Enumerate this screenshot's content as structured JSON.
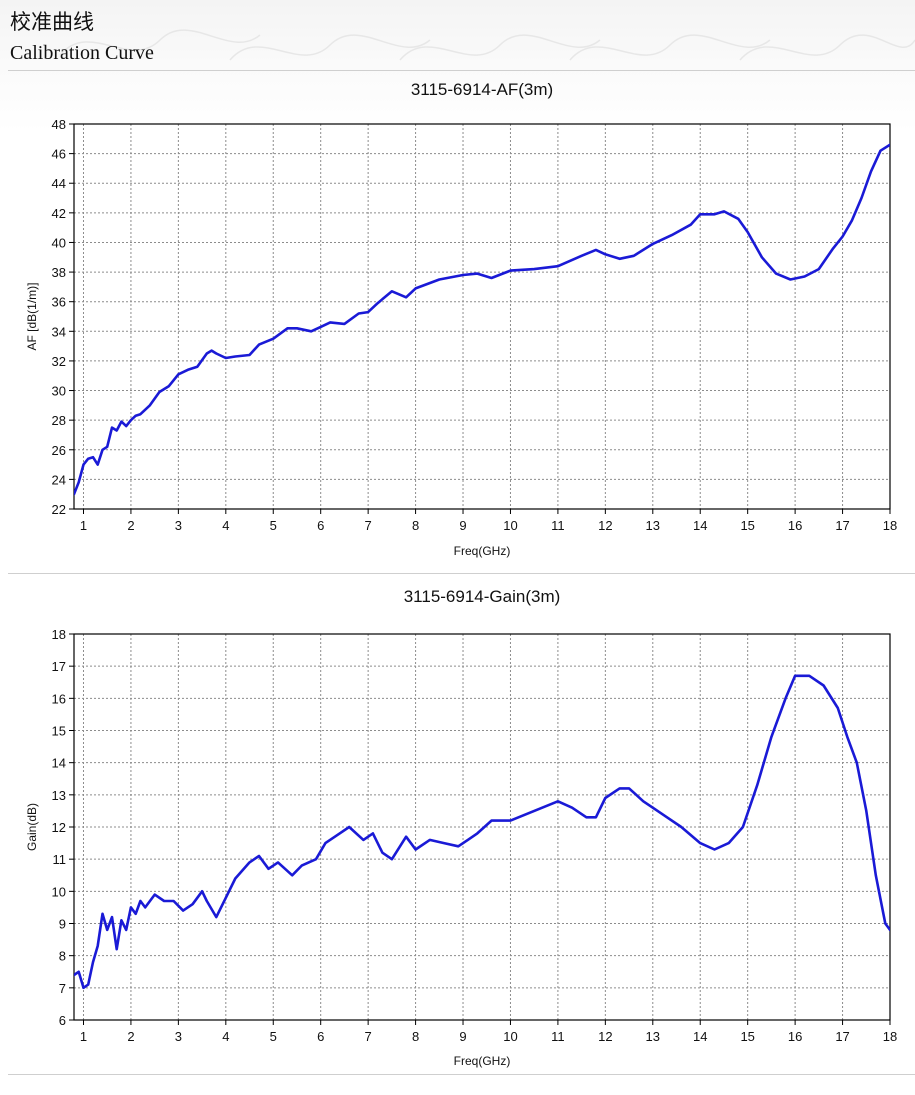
{
  "header": {
    "title_zh": "校准曲线",
    "title_en": "Calibration Curve"
  },
  "colors": {
    "curve": "#1a1ad6",
    "grid": "#8c8c8c",
    "frame": "#000000"
  },
  "chart_data": [
    {
      "type": "line",
      "title": "3115-6914-AF(3m)",
      "xlabel": "Freq(GHz)",
      "ylabel": "AF [dB(1/m)]",
      "xlim": [
        0.8,
        18
      ],
      "ylim": [
        22,
        48
      ],
      "xticks": [
        1,
        2,
        3,
        4,
        5,
        6,
        7,
        8,
        9,
        10,
        11,
        12,
        13,
        14,
        15,
        16,
        17,
        18
      ],
      "yticks": [
        22,
        24,
        26,
        28,
        30,
        32,
        34,
        36,
        38,
        40,
        42,
        44,
        46,
        48
      ],
      "grid": true,
      "series": [
        {
          "x": [
            0.8,
            0.9,
            1.0,
            1.1,
            1.2,
            1.3,
            1.4,
            1.5,
            1.6,
            1.7,
            1.8,
            1.9,
            2.0,
            2.1,
            2.2,
            2.4,
            2.6,
            2.8,
            3.0,
            3.2,
            3.4,
            3.6,
            3.7,
            3.8,
            4.0,
            4.2,
            4.5,
            4.7,
            5.0,
            5.3,
            5.5,
            5.8,
            6.0,
            6.2,
            6.5,
            6.8,
            7.0,
            7.2,
            7.5,
            7.8,
            8.0,
            8.5,
            9.0,
            9.3,
            9.6,
            10.0,
            10.5,
            11.0,
            11.5,
            11.8,
            12.0,
            12.3,
            12.6,
            13.0,
            13.4,
            13.8,
            14.0,
            14.3,
            14.5,
            14.8,
            15.0,
            15.3,
            15.6,
            15.9,
            16.2,
            16.5,
            16.8,
            17.0,
            17.2,
            17.4,
            17.6,
            17.8,
            18.0
          ],
          "y": [
            23.0,
            23.8,
            25.0,
            25.4,
            25.5,
            25.0,
            26.0,
            26.2,
            27.5,
            27.3,
            27.9,
            27.6,
            28.0,
            28.3,
            28.4,
            29.0,
            29.9,
            30.3,
            31.1,
            31.4,
            31.6,
            32.5,
            32.7,
            32.5,
            32.2,
            32.3,
            32.4,
            33.1,
            33.5,
            34.2,
            34.2,
            34.0,
            34.3,
            34.6,
            34.5,
            35.2,
            35.3,
            35.9,
            36.7,
            36.3,
            36.9,
            37.5,
            37.8,
            37.9,
            37.6,
            38.1,
            38.2,
            38.4,
            39.1,
            39.5,
            39.2,
            38.9,
            39.1,
            39.9,
            40.5,
            41.2,
            41.9,
            41.9,
            42.1,
            41.6,
            40.7,
            39.0,
            37.9,
            37.5,
            37.7,
            38.2,
            39.6,
            40.4,
            41.5,
            43.0,
            44.8,
            46.2,
            46.6
          ]
        }
      ]
    },
    {
      "type": "line",
      "title": "3115-6914-Gain(3m)",
      "xlabel": "Freq(GHz)",
      "ylabel": "Gain(dB)",
      "xlim": [
        0.8,
        18
      ],
      "ylim": [
        6,
        18
      ],
      "xticks": [
        1,
        2,
        3,
        4,
        5,
        6,
        7,
        8,
        9,
        10,
        11,
        12,
        13,
        14,
        15,
        16,
        17,
        18
      ],
      "yticks": [
        6,
        7,
        8,
        9,
        10,
        11,
        12,
        13,
        14,
        15,
        16,
        17,
        18
      ],
      "grid": true,
      "series": [
        {
          "x": [
            0.8,
            0.9,
            1.0,
            1.1,
            1.2,
            1.3,
            1.4,
            1.5,
            1.6,
            1.7,
            1.8,
            1.9,
            2.0,
            2.1,
            2.2,
            2.3,
            2.5,
            2.7,
            2.9,
            3.1,
            3.3,
            3.5,
            3.6,
            3.8,
            4.0,
            4.2,
            4.5,
            4.7,
            4.9,
            5.1,
            5.4,
            5.6,
            5.9,
            6.1,
            6.4,
            6.6,
            6.9,
            7.1,
            7.3,
            7.5,
            7.8,
            8.0,
            8.3,
            8.6,
            8.9,
            9.1,
            9.3,
            9.6,
            10.0,
            10.5,
            11.0,
            11.3,
            11.6,
            11.8,
            12.0,
            12.3,
            12.5,
            12.8,
            13.0,
            13.3,
            13.6,
            14.0,
            14.3,
            14.6,
            14.9,
            15.2,
            15.5,
            15.8,
            16.0,
            16.3,
            16.6,
            16.9,
            17.1,
            17.3,
            17.5,
            17.7,
            17.9,
            18.0
          ],
          "y": [
            7.4,
            7.5,
            7.0,
            7.1,
            7.8,
            8.3,
            9.3,
            8.8,
            9.2,
            8.2,
            9.1,
            8.8,
            9.5,
            9.3,
            9.7,
            9.5,
            9.9,
            9.7,
            9.7,
            9.4,
            9.6,
            10.0,
            9.7,
            9.2,
            9.8,
            10.4,
            10.9,
            11.1,
            10.7,
            10.9,
            10.5,
            10.8,
            11.0,
            11.5,
            11.8,
            12.0,
            11.6,
            11.8,
            11.2,
            11.0,
            11.7,
            11.3,
            11.6,
            11.5,
            11.4,
            11.6,
            11.8,
            12.2,
            12.2,
            12.5,
            12.8,
            12.6,
            12.3,
            12.3,
            12.9,
            13.2,
            13.2,
            12.8,
            12.6,
            12.3,
            12.0,
            11.5,
            11.3,
            11.5,
            12.0,
            13.3,
            14.8,
            16.0,
            16.7,
            16.7,
            16.4,
            15.7,
            14.8,
            14.0,
            12.5,
            10.5,
            9.0,
            8.8
          ]
        }
      ]
    }
  ]
}
